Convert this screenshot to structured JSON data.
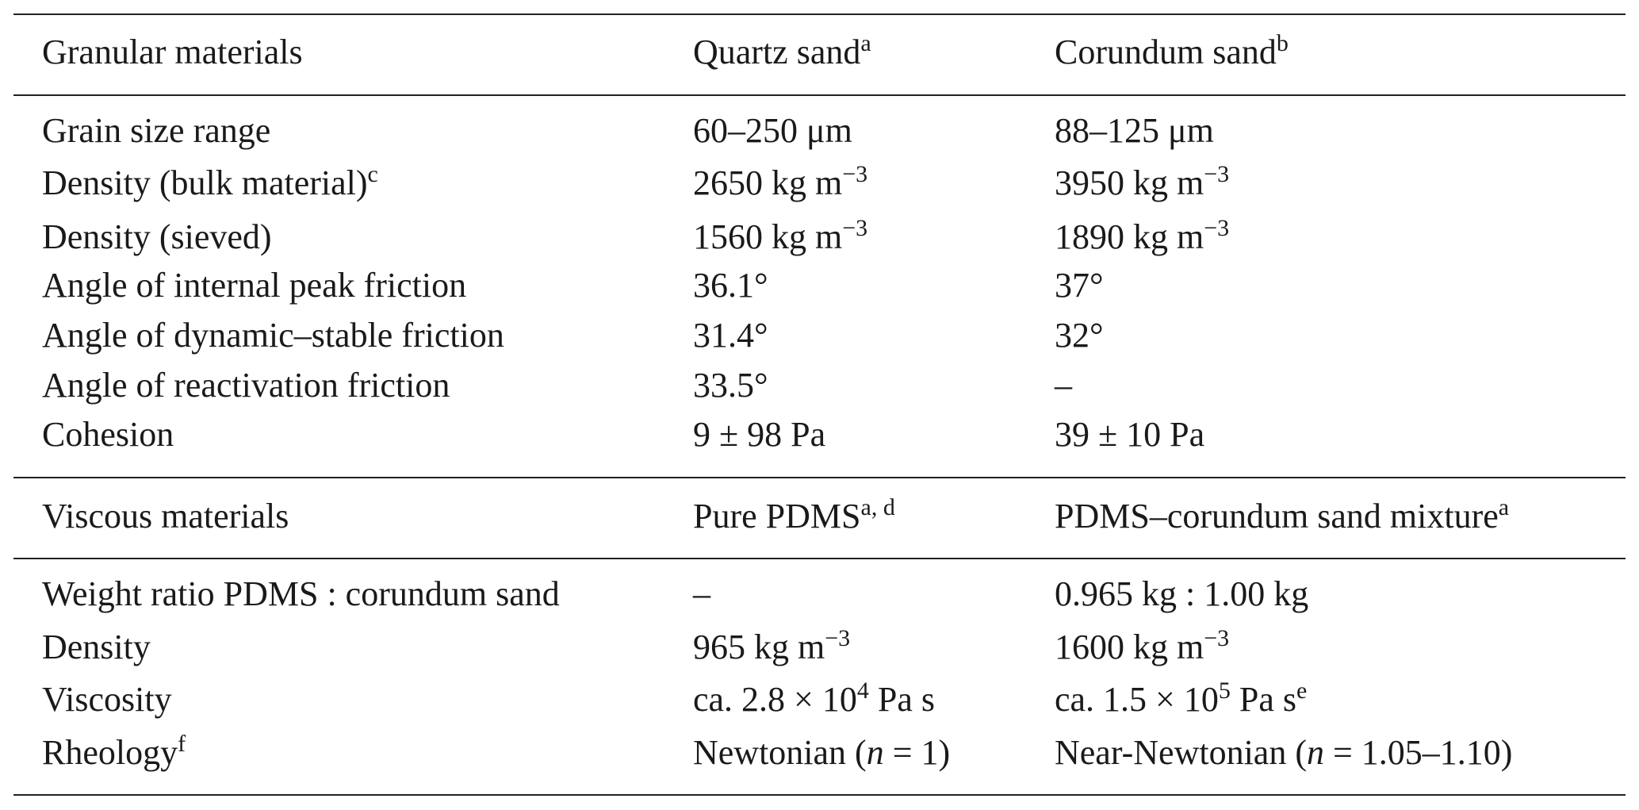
{
  "table": {
    "sections": [
      {
        "header": [
          [
            "Granular materials"
          ],
          [
            "Quartz sand",
            {
              "sup": "a"
            }
          ],
          [
            "Corundum sand",
            {
              "sup": "b"
            }
          ]
        ],
        "rows": [
          [
            [
              "Grain size range"
            ],
            [
              "60–250 μm"
            ],
            [
              "88–125 μm"
            ]
          ],
          [
            [
              "Density (bulk material)",
              {
                "sup": "c"
              }
            ],
            [
              "2650 kg m",
              {
                "sup": "−3"
              }
            ],
            [
              "3950 kg m",
              {
                "sup": "−3"
              }
            ]
          ],
          [
            [
              "Density (sieved)"
            ],
            [
              "1560 kg m",
              {
                "sup": "−3"
              }
            ],
            [
              "1890 kg m",
              {
                "sup": "−3"
              }
            ]
          ],
          [
            [
              "Angle of internal peak friction"
            ],
            [
              "36.1°"
            ],
            [
              "37°"
            ]
          ],
          [
            [
              "Angle of dynamic–stable friction"
            ],
            [
              "31.4°"
            ],
            [
              "32°"
            ]
          ],
          [
            [
              "Angle of reactivation friction"
            ],
            [
              "33.5°"
            ],
            [
              "–"
            ]
          ],
          [
            [
              "Cohesion"
            ],
            [
              "9 ± 98 Pa"
            ],
            [
              "39 ± 10 Pa"
            ]
          ]
        ]
      },
      {
        "header": [
          [
            "Viscous materials"
          ],
          [
            "Pure PDMS",
            {
              "sup": "a, d"
            }
          ],
          [
            "PDMS–corundum sand mixture",
            {
              "sup": "a"
            }
          ]
        ],
        "rows": [
          [
            [
              "Weight ratio PDMS : corundum sand"
            ],
            [
              "–"
            ],
            [
              "0.965 kg : 1.00 kg"
            ]
          ],
          [
            [
              "Density"
            ],
            [
              "965 kg m",
              {
                "sup": "−3"
              }
            ],
            [
              "1600 kg m",
              {
                "sup": "−3"
              }
            ]
          ],
          [
            [
              "Viscosity"
            ],
            [
              "ca. 2.8 × 10",
              {
                "sup": "4"
              },
              " Pa s"
            ],
            [
              "ca. 1.5 × 10",
              {
                "sup": "5"
              },
              " Pa s",
              {
                "sup": "e"
              }
            ]
          ],
          [
            [
              "Rheology",
              {
                "sup": "f"
              }
            ],
            [
              "Newtonian (",
              {
                "i": "n"
              },
              " = 1)"
            ],
            [
              "Near-Newtonian (",
              {
                "i": "n"
              },
              " = 1.05–1.10)"
            ]
          ]
        ]
      }
    ]
  }
}
